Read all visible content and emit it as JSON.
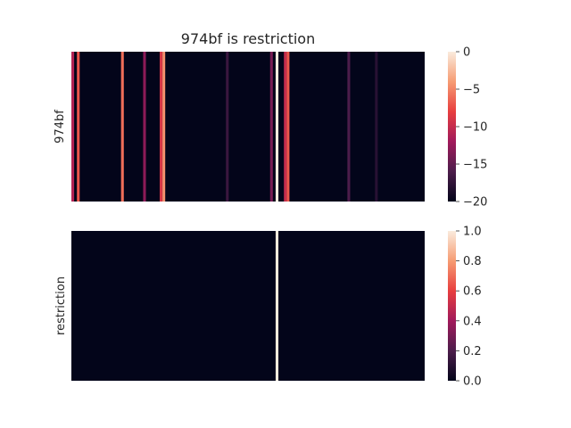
{
  "chart_data": [
    {
      "type": "heatmap",
      "title": "974bf is restriction",
      "ylabel": "974bf",
      "xlabel": "",
      "columns": 128,
      "background_value": -20,
      "stripes": [
        {
          "col": 0,
          "value": -11
        },
        {
          "col": 2,
          "value": -7
        },
        {
          "col": 18,
          "value": -6
        },
        {
          "col": 26,
          "value": -13
        },
        {
          "col": 32,
          "value": -9
        },
        {
          "col": 33,
          "value": -4.5
        },
        {
          "col": 56,
          "value": -17
        },
        {
          "col": 72,
          "value": -14
        },
        {
          "col": 74,
          "value": 0
        },
        {
          "col": 77,
          "value": -10
        },
        {
          "col": 78,
          "value": -7
        },
        {
          "col": 100,
          "value": -16
        },
        {
          "col": 110,
          "value": -18
        }
      ],
      "colorbar": {
        "min": -20,
        "max": 0,
        "ticks": [
          "0",
          "−5",
          "−10",
          "−15",
          "−20"
        ],
        "tick_values": [
          0,
          -5,
          -10,
          -15,
          -20
        ]
      },
      "grid": false,
      "colormap": [
        "#03051a",
        "#4c1d4b",
        "#a11a5b",
        "#e83f3f",
        "#f69c73",
        "#faebdd"
      ]
    },
    {
      "type": "heatmap",
      "title": "",
      "ylabel": "restriction",
      "xlabel": "",
      "columns": 128,
      "background_value": 0,
      "stripes": [
        {
          "col": 74,
          "value": 1
        }
      ],
      "colorbar": {
        "min": 0,
        "max": 1,
        "ticks": [
          "1.0",
          "0.8",
          "0.6",
          "0.4",
          "0.2",
          "0.0"
        ],
        "tick_values": [
          1.0,
          0.8,
          0.6,
          0.4,
          0.2,
          0.0
        ]
      },
      "grid": false,
      "colormap": [
        "#03051a",
        "#4c1d4b",
        "#a11a5b",
        "#e83f3f",
        "#f69c73",
        "#faebdd"
      ]
    }
  ]
}
